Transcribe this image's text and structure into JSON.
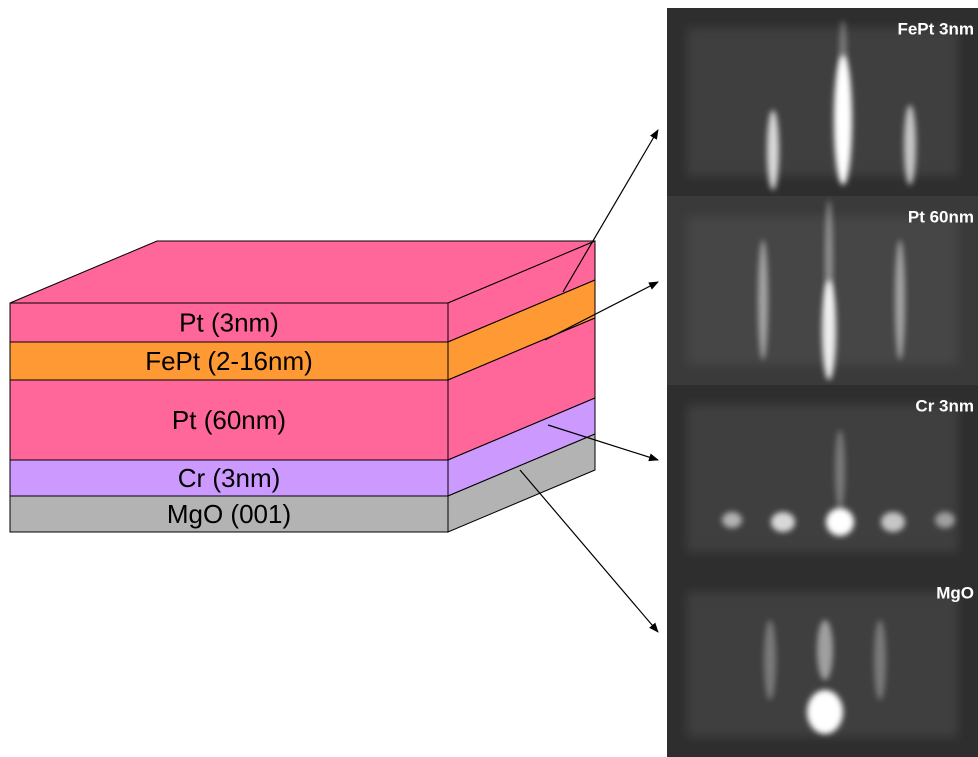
{
  "layers": [
    {
      "label": "Pt (3nm)",
      "color": "#ff6699"
    },
    {
      "label": "FePt (2-16nm)",
      "color": "#ff9933"
    },
    {
      "label": "Pt (60nm)",
      "color": "#ff6699"
    },
    {
      "label": "Cr (3nm)",
      "color": "#cc99ff"
    },
    {
      "label": "MgO (001)",
      "color": "#b3b3b3"
    }
  ],
  "panels": [
    {
      "label": "FePt 3nm"
    },
    {
      "label": "Pt 60nm"
    },
    {
      "label": "Cr 3nm"
    },
    {
      "label": "MgO"
    }
  ]
}
